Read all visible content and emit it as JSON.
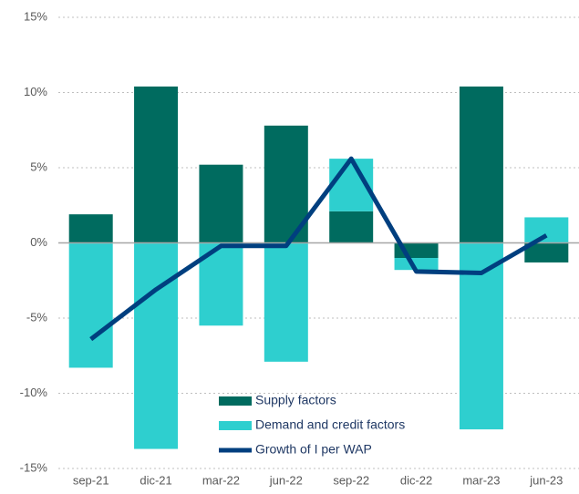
{
  "chart_data": {
    "type": "bar+line",
    "categories": [
      "sep-21",
      "dic-21",
      "mar-22",
      "jun-22",
      "sep-22",
      "dic-22",
      "mar-23",
      "jun-23"
    ],
    "series": [
      {
        "name": "Supply factors",
        "type": "bar",
        "color": "#006b5f",
        "values": [
          1.9,
          10.4,
          5.2,
          7.8,
          2.1,
          -1.0,
          10.4,
          -1.3
        ]
      },
      {
        "name": "Demand and credit factors",
        "type": "bar",
        "color": "#2ecfcf",
        "values": [
          -8.3,
          -13.7,
          -5.5,
          -7.9,
          3.5,
          -0.8,
          -12.4,
          1.7
        ]
      },
      {
        "name": "Growth of I per WAP",
        "type": "line",
        "color": "#003f7f",
        "values": [
          -6.4,
          -3.1,
          -0.2,
          -0.2,
          5.6,
          -1.9,
          -2.0,
          0.5
        ]
      }
    ],
    "ylim": [
      -15,
      15
    ],
    "yticks": [
      {
        "value": -15,
        "label": "-15%"
      },
      {
        "value": -10,
        "label": "-10%"
      },
      {
        "value": -5,
        "label": "-5%"
      },
      {
        "value": 0,
        "label": "0%"
      },
      {
        "value": 5,
        "label": "5%"
      },
      {
        "value": 10,
        "label": "10%"
      },
      {
        "value": 15,
        "label": "15%"
      }
    ],
    "grid": true,
    "legend_position": "lower center"
  }
}
